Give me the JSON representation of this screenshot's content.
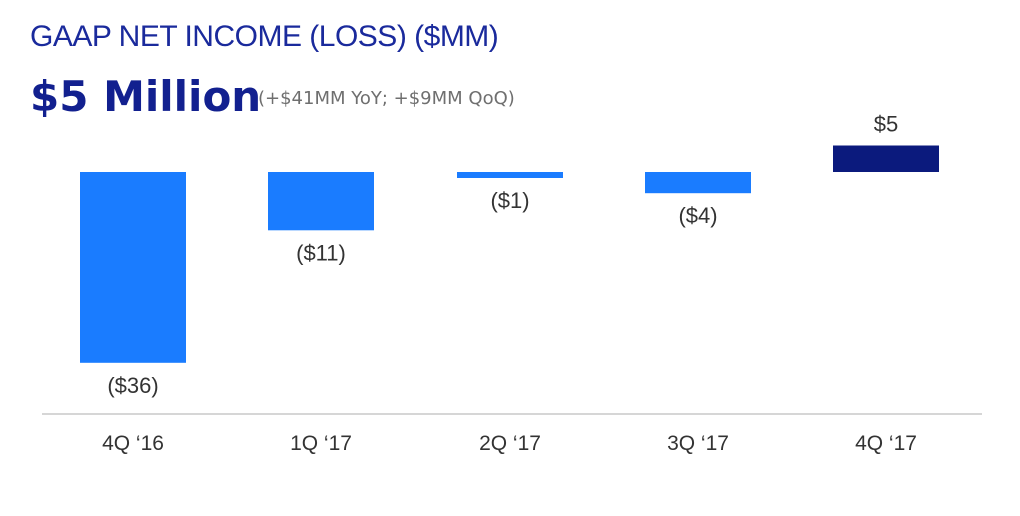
{
  "title": "GAAP NET INCOME (LOSS) ($MM)",
  "headline": "$5 Million",
  "subheadline": "(+$41MM YoY; +$9MM QoQ)",
  "colors": {
    "negative_bar": "#1a7cff",
    "positive_bar": "#0b1a7d",
    "axis": "#c8c8c8",
    "label": "#333333"
  },
  "chart_data": {
    "type": "bar",
    "categories": [
      "4Q ‘16",
      "1Q ‘17",
      "2Q ‘17",
      "3Q ‘17",
      "4Q ‘17"
    ],
    "values": [
      -36,
      -11,
      -1,
      -4,
      5
    ],
    "data_labels": [
      "($36)",
      "($11)",
      "($1)",
      "($4)",
      "$5"
    ],
    "title": "GAAP NET INCOME (LOSS) ($MM)",
    "xlabel": "",
    "ylabel": "",
    "grid": false
  }
}
